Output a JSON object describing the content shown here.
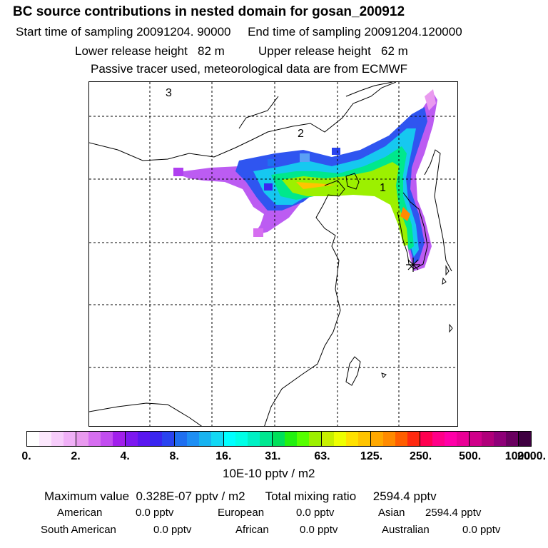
{
  "header": {
    "title": "BC  source contributions in nested domain for gosan_200912",
    "line_sampling": "Start time of sampling 20091204. 90000     End time of sampling 20091204.120000",
    "line_release": "Lower release height   82 m          Upper release height   62 m",
    "line_tracer": "Passive tracer used, meteorological data are from ECMWF"
  },
  "map": {
    "domain_labels": [
      "1",
      "2",
      "3"
    ],
    "receptor_marker": "asterisk-icon"
  },
  "colorbar": {
    "colors": [
      "#ffffff",
      "#fce8fd",
      "#f7cdfb",
      "#f0b0f7",
      "#e99aef",
      "#d66ef0",
      "#c24df0",
      "#a11fec",
      "#7d18f0",
      "#5a17f0",
      "#3a26f0",
      "#2a44f0",
      "#1f6ff0",
      "#1e8ff4",
      "#18b3f0",
      "#12d8f4",
      "#00ffff",
      "#00ffe6",
      "#00f0c4",
      "#00e890",
      "#00e05a",
      "#22f010",
      "#55ff00",
      "#9cf000",
      "#c8f000",
      "#eeff00",
      "#ffe100",
      "#ffc400",
      "#ffa800",
      "#ff8a00",
      "#ff5e00",
      "#ff2a10",
      "#ff0050",
      "#ff0088",
      "#ff00a8",
      "#ea0096",
      "#d0008a",
      "#b0007a",
      "#8e0078",
      "#6a0060",
      "#3e0040"
    ],
    "major_every": 4,
    "tick_labels": [
      "0.",
      "2.",
      "4.",
      "8.",
      "16.",
      "31.",
      "63.",
      "125.",
      "250.",
      "500.",
      "1000.",
      "2000."
    ],
    "unit": "10E-10 pptv / m2"
  },
  "summary": {
    "max_line": "Maximum value  0.328E-07 pptv / m2      Total mixing ratio     2594.4 pptv",
    "sources": [
      {
        "name": "American",
        "value": "0.0 pptv"
      },
      {
        "name": "European",
        "value": "0.0 pptv"
      },
      {
        "name": "Asian",
        "value": "2594.4 pptv"
      },
      {
        "name": "South American",
        "value": "0.0 pptv"
      },
      {
        "name": "African",
        "value": "0.0 pptv"
      },
      {
        "name": "Australian",
        "value": "0.0 pptv"
      }
    ]
  }
}
